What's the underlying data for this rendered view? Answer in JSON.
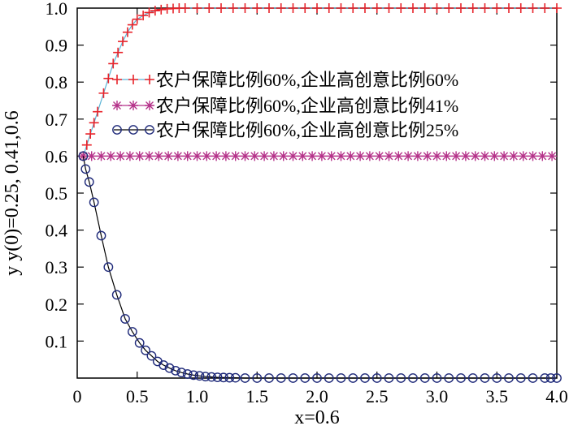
{
  "chart_data": {
    "type": "line",
    "title": "",
    "xlabel": "x=0.6",
    "ylabel": "y y(0)=0.25, 0.41,0.6",
    "xlim": [
      0,
      4
    ],
    "ylim": [
      0,
      1
    ],
    "x_ticks": [
      "0",
      "0.5",
      "1.0",
      "1.5",
      "2.0",
      "2.5",
      "3.0",
      "3.5",
      "4.0"
    ],
    "y_ticks": [
      "0.1",
      "0.2",
      "0.3",
      "0.4",
      "0.5",
      "0.6",
      "0.7",
      "0.8",
      "0.9",
      "1.0"
    ],
    "grid": false,
    "legend_position": "top-right",
    "series": [
      {
        "name": "农户保障比例60%,企业高创意比例60%",
        "marker": "plus",
        "color": "#e8232a",
        "line_color": "#5ab4d6",
        "x": [
          0.05,
          0.08,
          0.11,
          0.14,
          0.17,
          0.22,
          0.26,
          0.3,
          0.34,
          0.38,
          0.42,
          0.46,
          0.5,
          0.55,
          0.6,
          0.65,
          0.7,
          0.75,
          0.8,
          0.85,
          0.9,
          1.0,
          1.1,
          1.2,
          1.3,
          1.4,
          1.5,
          1.6,
          1.7,
          1.8,
          1.9,
          2.0,
          2.1,
          2.2,
          2.3,
          2.4,
          2.5,
          2.6,
          2.7,
          2.8,
          2.9,
          3.0,
          3.1,
          3.2,
          3.3,
          3.4,
          3.5,
          3.6,
          3.7,
          3.8,
          3.9,
          4.0
        ],
        "y": [
          0.6,
          0.63,
          0.66,
          0.69,
          0.72,
          0.77,
          0.81,
          0.85,
          0.88,
          0.91,
          0.935,
          0.955,
          0.97,
          0.98,
          0.988,
          0.993,
          0.996,
          0.998,
          0.999,
          1.0,
          1.0,
          1.0,
          1.0,
          1.0,
          1.0,
          1.0,
          1.0,
          1.0,
          1.0,
          1.0,
          1.0,
          1.0,
          1.0,
          1.0,
          1.0,
          1.0,
          1.0,
          1.0,
          1.0,
          1.0,
          1.0,
          1.0,
          1.0,
          1.0,
          1.0,
          1.0,
          1.0,
          1.0,
          1.0,
          1.0,
          1.0,
          1.0
        ]
      },
      {
        "name": "农户保障比例60%,企业高创意比例41%",
        "marker": "asterisk",
        "color": "#b5338a",
        "line_color": "#b5338a",
        "x": [
          0.05,
          0.12,
          0.2,
          0.28,
          0.36,
          0.44,
          0.52,
          0.6,
          0.68,
          0.76,
          0.84,
          0.92,
          1.0,
          1.08,
          1.16,
          1.24,
          1.32,
          1.4,
          1.48,
          1.56,
          1.64,
          1.72,
          1.8,
          1.88,
          1.96,
          2.04,
          2.12,
          2.2,
          2.28,
          2.36,
          2.44,
          2.52,
          2.6,
          2.68,
          2.76,
          2.84,
          2.92,
          3.0,
          3.08,
          3.16,
          3.24,
          3.32,
          3.4,
          3.48,
          3.56,
          3.64,
          3.72,
          3.8,
          3.88,
          3.96
        ],
        "y": [
          0.6,
          0.6,
          0.6,
          0.6,
          0.6,
          0.6,
          0.6,
          0.6,
          0.6,
          0.6,
          0.6,
          0.6,
          0.6,
          0.6,
          0.6,
          0.6,
          0.6,
          0.6,
          0.6,
          0.6,
          0.6,
          0.6,
          0.6,
          0.6,
          0.6,
          0.6,
          0.6,
          0.6,
          0.6,
          0.6,
          0.6,
          0.6,
          0.6,
          0.6,
          0.6,
          0.6,
          0.6,
          0.6,
          0.6,
          0.6,
          0.6,
          0.6,
          0.6,
          0.6,
          0.6,
          0.6,
          0.6,
          0.6,
          0.6,
          0.6
        ]
      },
      {
        "name": "农户保障比例60%,企业高创意比例25%",
        "marker": "circle",
        "color": "#1f2a7a",
        "line_color": "#000000",
        "x": [
          0.05,
          0.07,
          0.1,
          0.14,
          0.2,
          0.26,
          0.33,
          0.4,
          0.46,
          0.52,
          0.57,
          0.62,
          0.67,
          0.72,
          0.77,
          0.82,
          0.87,
          0.92,
          0.97,
          1.02,
          1.07,
          1.12,
          1.17,
          1.22,
          1.27,
          1.32,
          1.4,
          1.5,
          1.6,
          1.7,
          1.8,
          1.9,
          2.0,
          2.1,
          2.2,
          2.3,
          2.4,
          2.5,
          2.6,
          2.7,
          2.8,
          2.9,
          3.0,
          3.1,
          3.2,
          3.3,
          3.4,
          3.5,
          3.6,
          3.7,
          3.8,
          3.9,
          3.95,
          4.0
        ],
        "y": [
          0.6,
          0.565,
          0.53,
          0.475,
          0.385,
          0.3,
          0.225,
          0.16,
          0.125,
          0.095,
          0.075,
          0.06,
          0.045,
          0.035,
          0.027,
          0.02,
          0.015,
          0.011,
          0.008,
          0.006,
          0.004,
          0.003,
          0.002,
          0.0015,
          0.001,
          0.0008,
          0.0,
          0.0,
          0.0,
          0.0,
          0.0,
          0.0,
          0.0,
          0.0,
          0.0,
          0.0,
          0.0,
          0.0,
          0.0,
          0.0,
          0.0,
          0.0,
          0.0,
          0.0,
          0.0,
          0.0,
          0.0,
          0.0,
          0.0,
          0.0,
          0.0,
          0.0,
          0.0,
          0.0
        ]
      }
    ]
  }
}
